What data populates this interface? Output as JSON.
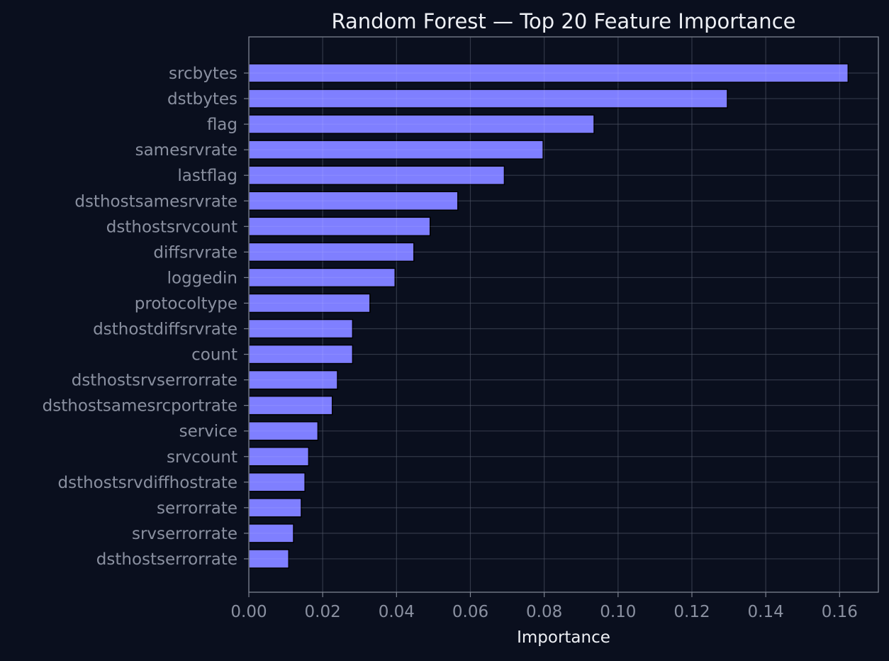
{
  "chart_data": {
    "type": "bar",
    "orientation": "horizontal",
    "title": "Random Forest — Top 20 Feature Importance",
    "xlabel": "Importance",
    "ylabel": "",
    "xlim": [
      0,
      0.1705
    ],
    "xticks": [
      0.0,
      0.02,
      0.04,
      0.06,
      0.08,
      0.1,
      0.12,
      0.14,
      0.16
    ],
    "xtick_labels": [
      "0.00",
      "0.02",
      "0.04",
      "0.06",
      "0.08",
      "0.10",
      "0.12",
      "0.14",
      "0.16"
    ],
    "grid": true,
    "categories": [
      "srcbytes",
      "dstbytes",
      "flag",
      "samesrvrate",
      "lastflag",
      "dsthostsamesrvrate",
      "dsthostsrvcount",
      "diffsrvrate",
      "loggedin",
      "protocoltype",
      "dsthostdiffsrvrate",
      "count",
      "dsthostsrvserrorrate",
      "dsthostsamesrcportrate",
      "service",
      "srvcount",
      "dsthostsrvdiffhostrate",
      "serrorrate",
      "srvserrorrate",
      "dsthostserrorrate"
    ],
    "values": [
      0.1623,
      0.1296,
      0.0935,
      0.0797,
      0.0692,
      0.0566,
      0.0491,
      0.0447,
      0.0396,
      0.0328,
      0.0281,
      0.0281,
      0.024,
      0.0226,
      0.0187,
      0.0162,
      0.0152,
      0.0142,
      0.0121,
      0.0108
    ],
    "colors": {
      "background": "#0a0f1e",
      "bar": "#7f7fff",
      "bar_edge": "#000000",
      "axis": "#7d8391",
      "grid": "#1e2536",
      "tick_text": "#8a90a0",
      "title_text": "#eef0f5"
    }
  }
}
